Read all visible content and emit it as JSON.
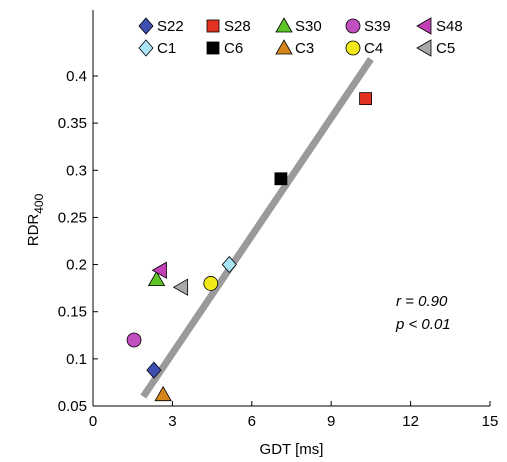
{
  "chart_data": {
    "type": "scatter",
    "xlabel": "GDT [ms]",
    "ylabel_main": "RDR",
    "ylabel_sub": "400",
    "xlim": [
      0,
      15
    ],
    "ylim": [
      0.05,
      0.47
    ],
    "xticks": [
      0,
      3,
      6,
      9,
      12,
      15
    ],
    "xtick_labels": [
      "0",
      "3",
      "6",
      "9",
      "12",
      "15"
    ],
    "yticks": [
      0.05,
      0.1,
      0.15,
      0.2,
      0.25,
      0.3,
      0.35,
      0.4
    ],
    "ytick_labels": [
      "0.05",
      "0.1",
      "0.15",
      "0.2",
      "0.25",
      "0.3",
      "0.35",
      "0.4"
    ],
    "grid": false,
    "legend_position": "top",
    "series": [
      {
        "name": "S22",
        "marker": "diamond",
        "color": "#3d4fb0",
        "x": 2.3,
        "y": 0.088
      },
      {
        "name": "S28",
        "marker": "square",
        "color": "#e3321f",
        "x": 10.3,
        "y": 0.376
      },
      {
        "name": "S30",
        "marker": "triangle-up",
        "color": "#5fc426",
        "x": 2.4,
        "y": 0.184
      },
      {
        "name": "S39",
        "marker": "circle",
        "color": "#c24fbf",
        "x": 1.55,
        "y": 0.12
      },
      {
        "name": "S48",
        "marker": "triangle-left",
        "color": "#c23fb4",
        "x": 2.55,
        "y": 0.194
      },
      {
        "name": "C1",
        "marker": "diamond",
        "color": "#a8e4f4",
        "x": 5.15,
        "y": 0.2
      },
      {
        "name": "C6",
        "marker": "square",
        "color": "#000000",
        "x": 7.1,
        "y": 0.291
      },
      {
        "name": "C3",
        "marker": "triangle-up",
        "color": "#d4861c",
        "x": 2.65,
        "y": 0.062
      },
      {
        "name": "C4",
        "marker": "circle",
        "color": "#f4ea1a",
        "x": 4.45,
        "y": 0.18
      },
      {
        "name": "C5",
        "marker": "triangle-left",
        "color": "#a9a9a9",
        "x": 3.35,
        "y": 0.176
      }
    ],
    "fit_line": {
      "x": [
        1.9,
        10.5
      ],
      "y": [
        0.06,
        0.418
      ],
      "color": "#9a9a9a"
    },
    "annotations": {
      "r_text": "r  = 0.90",
      "p_text": "p < 0.01"
    }
  }
}
